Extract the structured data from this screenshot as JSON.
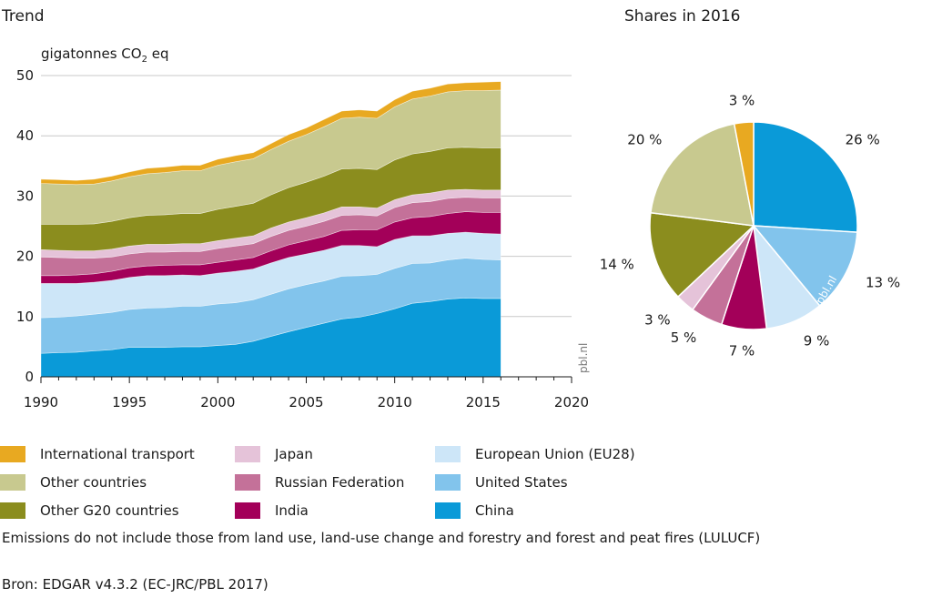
{
  "chart_data": [
    {
      "type": "area",
      "title": "Trend",
      "ylabel_prefix": "gigatonnes CO",
      "ylabel_sub": "2",
      "ylabel_suffix": " eq",
      "watermark": "pbl.nl",
      "ylim": [
        0,
        50
      ],
      "xlim": [
        1990,
        2020
      ],
      "x_ticks": [
        1990,
        1995,
        2000,
        2005,
        2010,
        2015,
        2020
      ],
      "y_ticks": [
        0,
        10,
        20,
        30,
        40,
        50
      ],
      "grid": "horizontal",
      "x": [
        1990,
        1991,
        1992,
        1993,
        1994,
        1995,
        1996,
        1997,
        1998,
        1999,
        2000,
        2001,
        2002,
        2003,
        2004,
        2005,
        2006,
        2007,
        2008,
        2009,
        2010,
        2011,
        2012,
        2013,
        2014,
        2015,
        2016
      ],
      "series": [
        {
          "name": "China",
          "color": "#0a9ad8",
          "values": [
            3.9,
            4.0,
            4.1,
            4.3,
            4.5,
            4.9,
            4.9,
            4.9,
            5.0,
            5.0,
            5.2,
            5.4,
            5.9,
            6.7,
            7.5,
            8.2,
            8.9,
            9.6,
            9.9,
            10.5,
            11.3,
            12.2,
            12.5,
            12.9,
            13.1,
            13.0,
            13.0
          ]
        },
        {
          "name": "United States",
          "color": "#82c4ec",
          "values": [
            5.9,
            5.9,
            6.0,
            6.1,
            6.2,
            6.3,
            6.5,
            6.6,
            6.7,
            6.7,
            6.9,
            6.9,
            6.9,
            7.0,
            7.1,
            7.1,
            7.0,
            7.1,
            6.9,
            6.5,
            6.7,
            6.6,
            6.4,
            6.5,
            6.6,
            6.5,
            6.4
          ]
        },
        {
          "name": "European Union (EU28)",
          "color": "#cde6f8",
          "values": [
            5.7,
            5.6,
            5.4,
            5.3,
            5.3,
            5.3,
            5.4,
            5.3,
            5.2,
            5.1,
            5.1,
            5.2,
            5.1,
            5.2,
            5.2,
            5.1,
            5.1,
            5.1,
            5.0,
            4.6,
            4.8,
            4.6,
            4.5,
            4.4,
            4.3,
            4.3,
            4.3
          ]
        },
        {
          "name": "India",
          "color": "#a30059",
          "values": [
            1.3,
            1.3,
            1.4,
            1.4,
            1.5,
            1.6,
            1.6,
            1.7,
            1.7,
            1.8,
            1.8,
            1.9,
            1.9,
            2.0,
            2.1,
            2.2,
            2.3,
            2.5,
            2.6,
            2.8,
            2.9,
            3.0,
            3.2,
            3.3,
            3.4,
            3.5,
            3.6
          ]
        },
        {
          "name": "Russian Federation",
          "color": "#c47199",
          "values": [
            3.1,
            3.0,
            2.8,
            2.6,
            2.4,
            2.3,
            2.3,
            2.2,
            2.2,
            2.2,
            2.3,
            2.3,
            2.3,
            2.4,
            2.4,
            2.4,
            2.5,
            2.5,
            2.5,
            2.3,
            2.4,
            2.5,
            2.5,
            2.5,
            2.4,
            2.4,
            2.4
          ]
        },
        {
          "name": "Japan",
          "color": "#e5c3d9",
          "values": [
            1.2,
            1.2,
            1.2,
            1.2,
            1.3,
            1.3,
            1.3,
            1.3,
            1.3,
            1.3,
            1.3,
            1.3,
            1.3,
            1.4,
            1.4,
            1.4,
            1.4,
            1.4,
            1.3,
            1.3,
            1.3,
            1.3,
            1.4,
            1.4,
            1.3,
            1.3,
            1.3
          ]
        },
        {
          "name": "Other G20 countries",
          "color": "#8b8d1e",
          "values": [
            4.2,
            4.3,
            4.4,
            4.5,
            4.6,
            4.7,
            4.8,
            4.9,
            5.0,
            5.0,
            5.2,
            5.3,
            5.4,
            5.5,
            5.7,
            5.9,
            6.1,
            6.3,
            6.4,
            6.4,
            6.6,
            6.8,
            6.9,
            7.0,
            7.0,
            7.0,
            7.0
          ]
        },
        {
          "name": "Other countries",
          "color": "#c8c98f",
          "values": [
            6.8,
            6.7,
            6.6,
            6.6,
            6.7,
            6.8,
            6.9,
            7.0,
            7.1,
            7.1,
            7.3,
            7.4,
            7.4,
            7.5,
            7.7,
            7.9,
            8.2,
            8.4,
            8.5,
            8.5,
            8.8,
            9.1,
            9.2,
            9.3,
            9.4,
            9.5,
            9.6
          ]
        },
        {
          "name": "International  transport",
          "color": "#e8a921",
          "values": [
            0.7,
            0.7,
            0.7,
            0.8,
            0.8,
            0.8,
            0.9,
            0.9,
            0.9,
            0.9,
            1.0,
            1.0,
            1.0,
            1.0,
            1.1,
            1.1,
            1.2,
            1.2,
            1.2,
            1.2,
            1.2,
            1.3,
            1.3,
            1.3,
            1.3,
            1.4,
            1.4
          ]
        }
      ]
    },
    {
      "type": "pie",
      "title": "Shares in 2016",
      "watermark": "pbl.nl",
      "slices": [
        {
          "name": "China",
          "value": 26,
          "label": "26 %",
          "color": "#0a9ad8"
        },
        {
          "name": "United States",
          "value": 13,
          "label": "13 %",
          "color": "#82c4ec"
        },
        {
          "name": "European Union (EU28)",
          "value": 9,
          "label": "9 %",
          "color": "#cde6f8"
        },
        {
          "name": "India",
          "value": 7,
          "label": "7 %",
          "color": "#a30059"
        },
        {
          "name": "Russian Federation",
          "value": 5,
          "label": "5 %",
          "color": "#c47199"
        },
        {
          "name": "Japan",
          "value": 3,
          "label": "3 %",
          "color": "#e5c3d9"
        },
        {
          "name": "Other G20 countries",
          "value": 14,
          "label": "14 %",
          "color": "#8b8d1e"
        },
        {
          "name": "Other countries",
          "value": 20,
          "label": "20 %",
          "color": "#c8c98f"
        },
        {
          "name": "International  transport",
          "value": 3,
          "label": "3 %",
          "color": "#e8a921"
        }
      ]
    }
  ],
  "legend": [
    {
      "label": "International  transport",
      "color": "#e8a921"
    },
    {
      "label": "Other countries",
      "color": "#c8c98f"
    },
    {
      "label": "Other G20 countries",
      "color": "#8b8d1e"
    },
    {
      "label": "Japan",
      "color": "#e5c3d9"
    },
    {
      "label": "Russian Federation",
      "color": "#c47199"
    },
    {
      "label": "India",
      "color": "#a30059"
    },
    {
      "label": "European Union (EU28)",
      "color": "#cde6f8"
    },
    {
      "label": "United States",
      "color": "#82c4ec"
    },
    {
      "label": "China",
      "color": "#0a9ad8"
    }
  ],
  "note": "Emissions do not include those from land use, land-use change and forestry and forest and peat fires (LULUCF)",
  "source": "Bron: EDGAR v4.3.2 (EC-JRC/PBL 2017)"
}
